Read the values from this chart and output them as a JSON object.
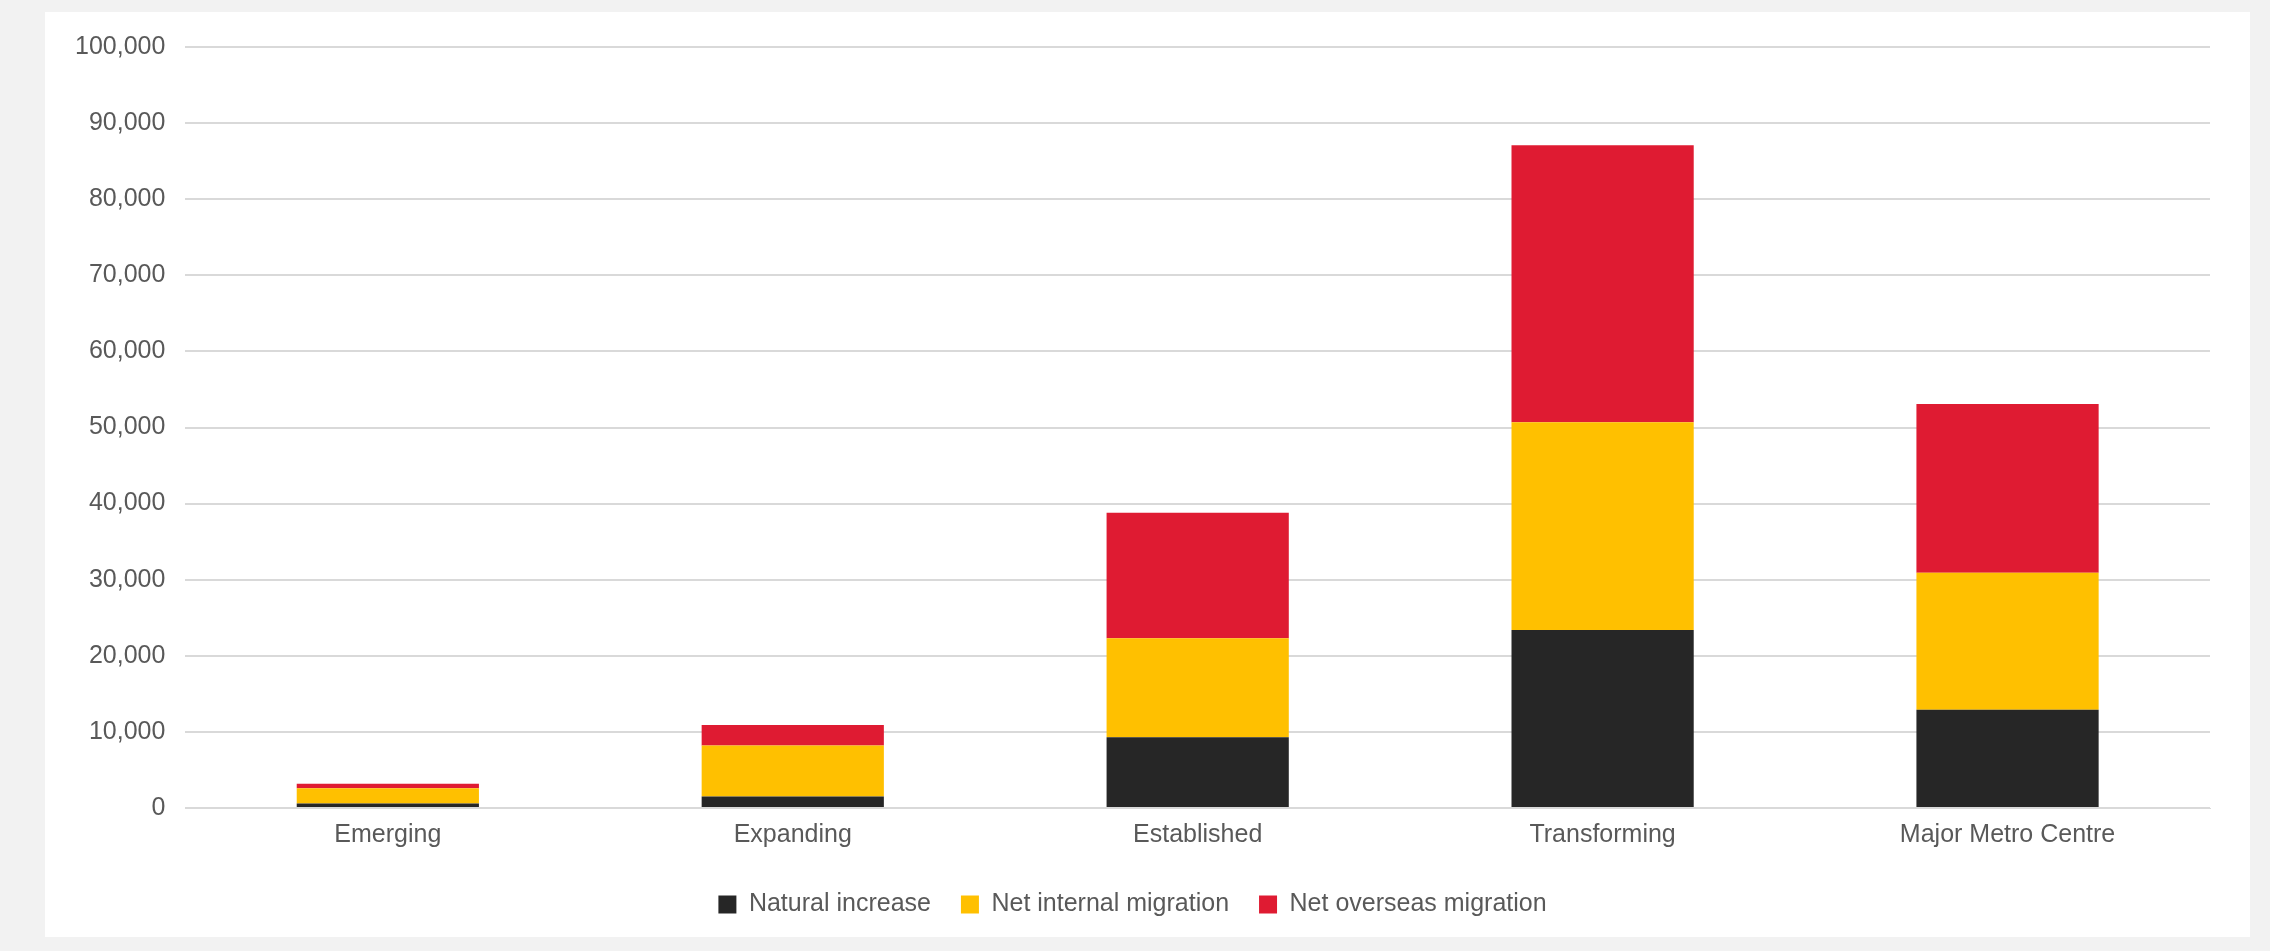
{
  "chart_data": {
    "type": "bar",
    "stacked": true,
    "categories": [
      "Emerging",
      "Expanding",
      "Established",
      "Transforming",
      "Major Metro Centre"
    ],
    "series": [
      {
        "name": "Natural increase",
        "color": "#262626",
        "values": [
          600,
          1500,
          9300,
          23400,
          12900
        ]
      },
      {
        "name": "Net internal migration",
        "color": "#ffc000",
        "values": [
          2000,
          6700,
          13000,
          27300,
          18000
        ]
      },
      {
        "name": "Net overseas migration",
        "color": "#df1b32",
        "values": [
          600,
          2700,
          16500,
          36400,
          22200
        ]
      }
    ],
    "ylim": [
      0,
      100000
    ],
    "yticks": [
      {
        "value": 0,
        "label": "0"
      },
      {
        "value": 10000,
        "label": "10,000"
      },
      {
        "value": 20000,
        "label": "20,000"
      },
      {
        "value": 30000,
        "label": "30,000"
      },
      {
        "value": 40000,
        "label": "40,000"
      },
      {
        "value": 50000,
        "label": "50,000"
      },
      {
        "value": 60000,
        "label": "60,000"
      },
      {
        "value": 70000,
        "label": "70,000"
      },
      {
        "value": 80000,
        "label": "80,000"
      },
      {
        "value": 90000,
        "label": "90,000"
      },
      {
        "value": 100000,
        "label": "100,000"
      }
    ],
    "grid": "y",
    "legend": "bottom"
  }
}
